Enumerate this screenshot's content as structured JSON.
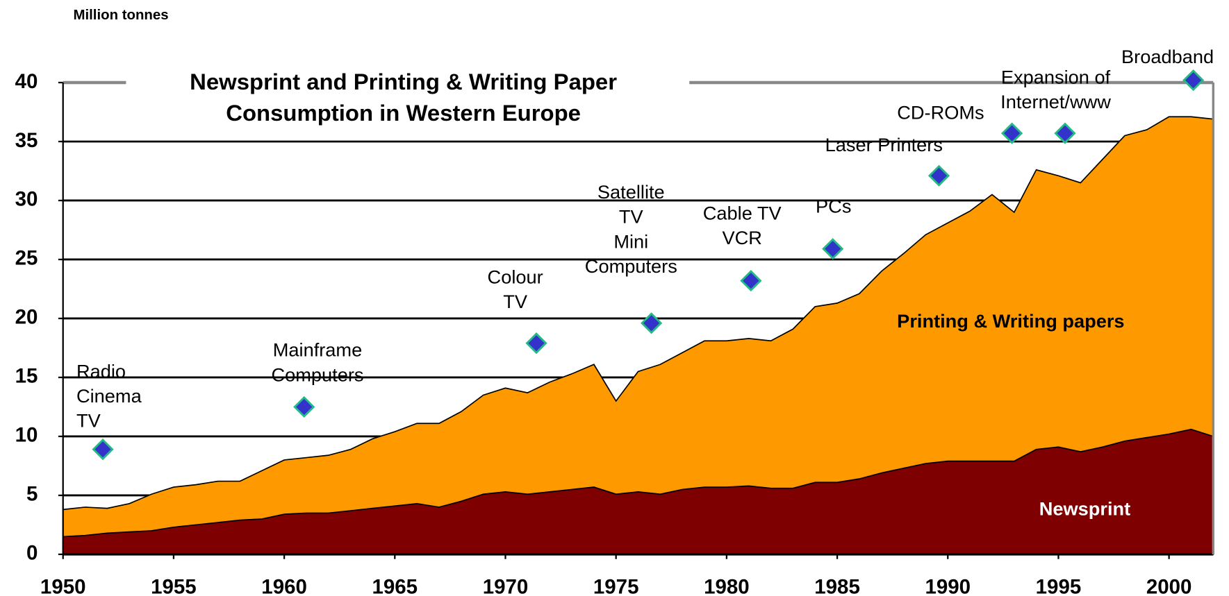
{
  "chart_data": {
    "type": "area",
    "stacked": true,
    "title": [
      "Newsprint and Printing & Writing Paper",
      "Consumption in Western Europe"
    ],
    "y_axis_label": "Million tonnes",
    "x": [
      1950,
      1951,
      1952,
      1953,
      1954,
      1955,
      1956,
      1957,
      1958,
      1959,
      1960,
      1961,
      1962,
      1963,
      1964,
      1965,
      1966,
      1967,
      1968,
      1969,
      1970,
      1971,
      1972,
      1973,
      1974,
      1975,
      1976,
      1977,
      1978,
      1979,
      1980,
      1981,
      1982,
      1983,
      1984,
      1985,
      1986,
      1987,
      1988,
      1989,
      1990,
      1991,
      1992,
      1993,
      1994,
      1995,
      1996,
      1997,
      1998,
      1999,
      2000,
      2001,
      2002
    ],
    "series": [
      {
        "name": "Newsprint",
        "color": "#7f0000",
        "values": [
          1.5,
          1.6,
          1.8,
          1.9,
          2.0,
          2.3,
          2.5,
          2.7,
          2.9,
          3.0,
          3.4,
          3.5,
          3.5,
          3.7,
          3.9,
          4.1,
          4.3,
          4.0,
          4.5,
          5.1,
          5.3,
          5.1,
          5.3,
          5.5,
          5.7,
          5.1,
          5.3,
          5.1,
          5.5,
          5.7,
          5.7,
          5.8,
          5.6,
          5.6,
          6.1,
          6.1,
          6.4,
          6.9,
          7.3,
          7.7,
          7.9,
          7.9,
          7.9,
          7.9,
          8.9,
          9.1,
          8.7,
          9.1,
          9.6,
          9.9,
          10.2,
          10.6,
          10.0
        ]
      },
      {
        "name": "Printing & Writing papers",
        "color": "#ff9900",
        "values": [
          2.3,
          2.4,
          2.1,
          2.4,
          3.1,
          3.4,
          3.4,
          3.5,
          3.3,
          4.1,
          4.6,
          4.7,
          4.9,
          5.2,
          5.9,
          6.3,
          6.8,
          7.1,
          7.6,
          8.4,
          8.8,
          8.6,
          9.3,
          9.8,
          10.4,
          7.9,
          10.2,
          11.0,
          11.6,
          12.4,
          12.4,
          12.5,
          12.5,
          13.5,
          14.9,
          15.2,
          15.7,
          17.1,
          18.2,
          19.4,
          20.2,
          21.2,
          22.6,
          21.1,
          23.7,
          23.0,
          22.8,
          24.4,
          25.9,
          26.1,
          26.9,
          26.5,
          26.9
        ]
      }
    ],
    "annotations": [
      {
        "label": [
          "Radio",
          "Cinema",
          "TV"
        ],
        "x": 1951.8,
        "y": 8.9
      },
      {
        "label": [
          "Mainframe",
          "Computers"
        ],
        "x": 1960.9,
        "y": 12.5
      },
      {
        "label": [
          "Colour",
          "TV"
        ],
        "x": 1971.4,
        "y": 17.9
      },
      {
        "label": [
          "Satellite",
          "TV",
          "Mini",
          "Computers"
        ],
        "x": 1976.6,
        "y": 19.6
      },
      {
        "label": [
          "Cable TV",
          "VCR"
        ],
        "x": 1981.1,
        "y": 23.2
      },
      {
        "label": [
          "PCs"
        ],
        "x": 1984.8,
        "y": 25.9
      },
      {
        "label": [
          "Laser Printers"
        ],
        "x": 1989.6,
        "y": 32.1
      },
      {
        "label": [
          "CD-ROMs"
        ],
        "x": 1992.9,
        "y": 35.7
      },
      {
        "label": [
          "Expansion of",
          "Internet/www"
        ],
        "x": 1995.3,
        "y": 35.7
      },
      {
        "label": [
          "Broadband"
        ],
        "x": 2001.1,
        "y": 40.2
      }
    ],
    "marker_color": "#3333cc",
    "marker_edge_color": "#22bb88",
    "xlim": [
      1950,
      2002
    ],
    "xticks": [
      1950,
      1955,
      1960,
      1965,
      1970,
      1975,
      1980,
      1985,
      1990,
      1995,
      2000
    ],
    "ylim": [
      0,
      40
    ],
    "yticks": [
      0,
      5,
      10,
      15,
      20,
      25,
      30,
      35,
      40
    ],
    "grid": true
  }
}
